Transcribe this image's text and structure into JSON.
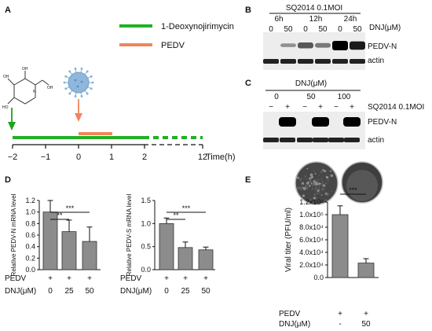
{
  "panel_letters": {
    "A": "A",
    "B": "B",
    "C": "C",
    "D": "D",
    "E": "E"
  },
  "panel_a": {
    "legend": [
      {
        "label": "1-Deoxynojirimycin",
        "color": "#21b024"
      },
      {
        "label": "PEDV",
        "color": "#f0865c"
      }
    ],
    "axis_ticks": [
      "−2",
      "−1",
      "0",
      "1",
      "2",
      "12"
    ],
    "axis_label": "Time(h)"
  },
  "panel_b": {
    "title": "SQ2014 0.1MOI",
    "time_labels": [
      "6h",
      "12h",
      "24h"
    ],
    "dose_labels": [
      "0",
      "50",
      "0",
      "50",
      "0",
      "50"
    ],
    "dose_unit": "DNJ(μM)",
    "band_labels": [
      "PEDV-N",
      "actin"
    ]
  },
  "panel_c": {
    "title": "DNJ(μM)",
    "dose_labels": [
      "0",
      "50",
      "100"
    ],
    "virus_signs": [
      "−",
      "+",
      "−",
      "+",
      "−",
      "+"
    ],
    "virus_label": "SQ2014 0.1MOI",
    "band_labels": [
      "PEDV-N",
      "actin"
    ]
  },
  "chart_data": [
    {
      "type": "bar",
      "ylabel": "Relative PEDV-N mRNA level",
      "ylim": [
        0,
        1.2
      ],
      "yticks": [
        "0.0",
        "0.2",
        "0.4",
        "0.6",
        "0.8",
        "1.0",
        "1.2"
      ],
      "categories": [
        "0",
        "25",
        "50"
      ],
      "values": [
        1.0,
        0.66,
        0.49
      ],
      "errors": [
        0.2,
        0.2,
        0.25
      ],
      "sig": [
        {
          "from": 0,
          "to": 1,
          "label": "**"
        },
        {
          "from": 0,
          "to": 2,
          "label": "***"
        }
      ],
      "row_labels": {
        "virus": "PEDV",
        "virus_signs": [
          "+",
          "+",
          "+"
        ],
        "dose": "DNJ(μM)"
      },
      "bar_color": "#8c8c8c"
    },
    {
      "type": "bar",
      "ylabel": "Relative PEDV-S mRNA level",
      "ylim": [
        0,
        1.5
      ],
      "yticks": [
        "0.0",
        "0.5",
        "1.0",
        "1.5"
      ],
      "categories": [
        "0",
        "25",
        "50"
      ],
      "values": [
        1.0,
        0.48,
        0.43
      ],
      "errors": [
        0.12,
        0.12,
        0.06
      ],
      "sig": [
        {
          "from": 0,
          "to": 1,
          "label": "**"
        },
        {
          "from": 0,
          "to": 2,
          "label": "***"
        }
      ],
      "row_labels": {
        "virus": "PEDV",
        "virus_signs": [
          "+",
          "+",
          "+"
        ],
        "dose": "DNJ(μM)"
      },
      "bar_color": "#8c8c8c"
    },
    {
      "type": "bar",
      "ylabel": "Viral titer (PFU/ml)",
      "ylim": [
        0,
        120000
      ],
      "yticks": [
        "0.0",
        "2.0x10⁴",
        "4.0x10⁴",
        "6.0x10⁴",
        "8.0x10⁴",
        "1.0x10⁵",
        "1.2x10⁵"
      ],
      "categories": [
        "-",
        "50"
      ],
      "values": [
        100000,
        23000
      ],
      "errors": [
        14000,
        7000
      ],
      "sig": [
        {
          "from": 0,
          "to": 1,
          "label": "***"
        }
      ],
      "row_labels": {
        "virus": "PEDV",
        "virus_signs": [
          "+",
          "+"
        ],
        "dose": "DNJ(μM)"
      },
      "bar_color": "#8c8c8c"
    }
  ]
}
